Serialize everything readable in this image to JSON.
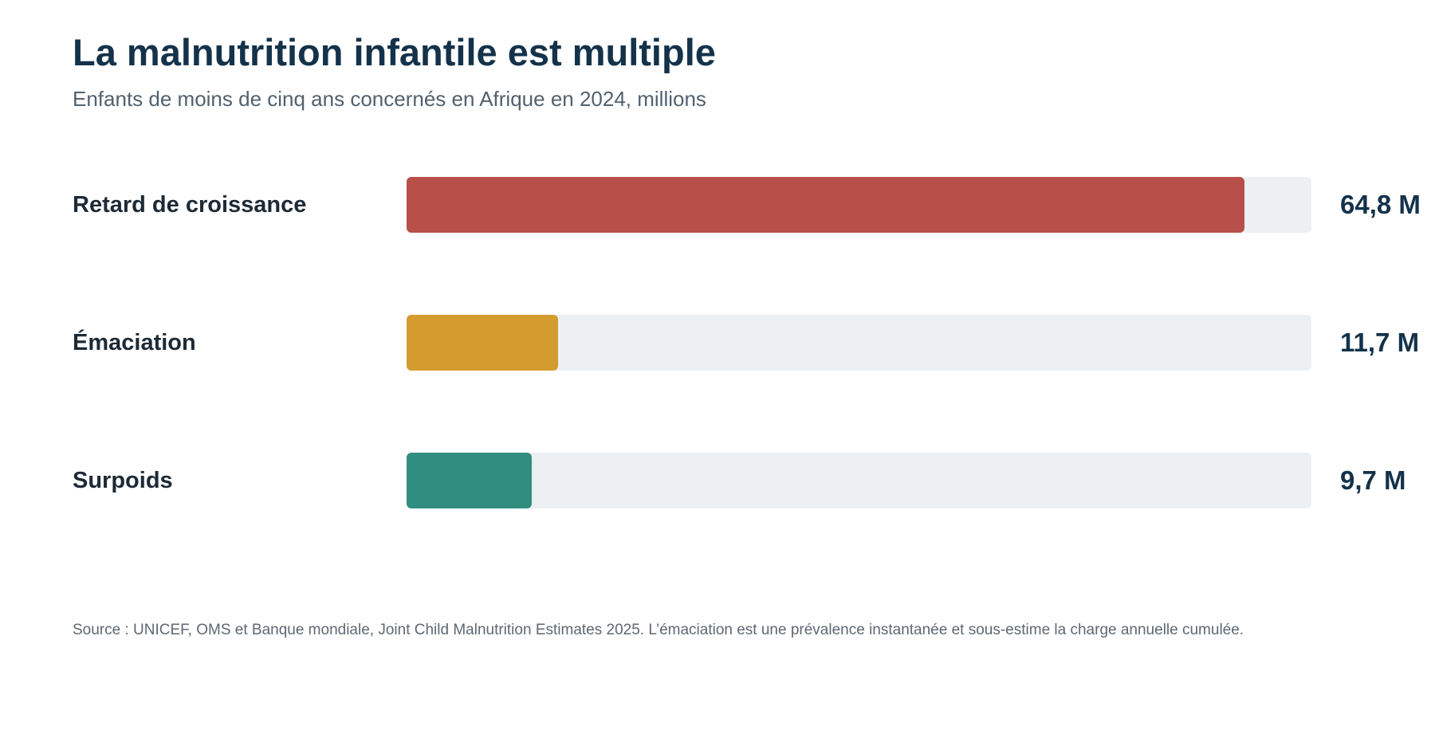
{
  "chart_data": {
    "type": "bar",
    "orientation": "horizontal",
    "title": "La malnutrition infantile est multiple",
    "subtitle": "Enfants de moins de cinq ans concernés en Afrique en 2024, millions",
    "categories": [
      "Retard de croissance",
      "Émaciation",
      "Surpoids"
    ],
    "values": [
      64.8,
      11.7,
      9.7
    ],
    "value_labels": [
      "64,8 M",
      "11,7 M",
      "9,7 M"
    ],
    "colors": [
      "#b84f48",
      "#d49b2e",
      "#318d80"
    ],
    "track_color": "#ecf0f3",
    "xlim": [
      0,
      70
    ],
    "grid": false,
    "legend": "none"
  },
  "source": "Source : UNICEF, OMS et Banque mondiale, Joint Child Malnutrition Estimates 2025. L’émaciation est une prévalence instantanée et sous-estime la charge annuelle cumulée."
}
